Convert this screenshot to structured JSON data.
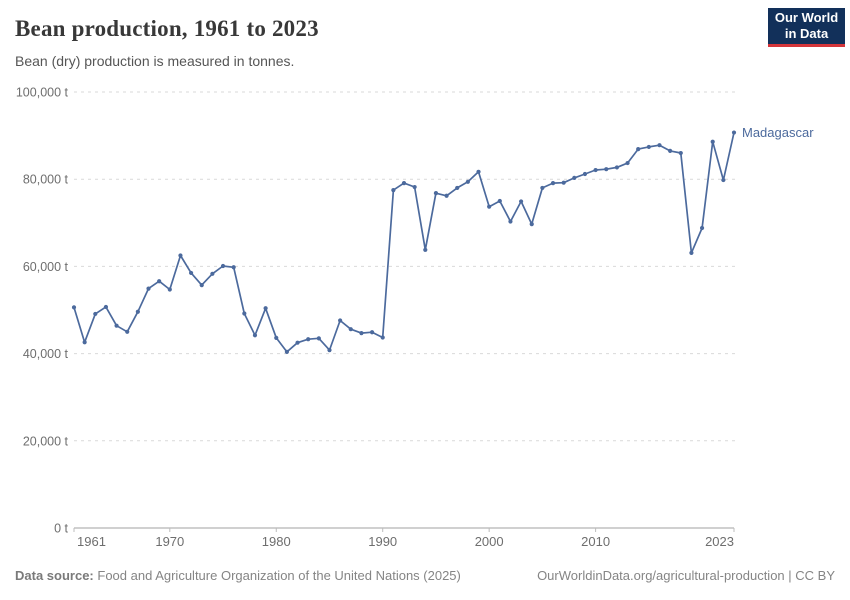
{
  "header": {
    "title": "Bean production, 1961 to 2023",
    "subtitle": "Bean (dry) production is measured in tonnes.",
    "logo_line1": "Our World",
    "logo_line2": "in Data"
  },
  "colors": {
    "series_blue": "#4c6a9d",
    "grid_gray": "#d9d9d9",
    "axis_gray": "#a0a0a0",
    "tick_label_gray": "#6e6e6e",
    "logo_bg_navy": "#12305a",
    "logo_red": "#d4353a"
  },
  "chart_data": {
    "type": "line",
    "title": "Bean production, 1961 to 2023",
    "subtitle": "Bean (dry) production is measured in tonnes.",
    "unit": "t",
    "grid": "horizontal dashed",
    "legend_position": "end-of-line label",
    "x_range": [
      1961,
      2023
    ],
    "ylim": [
      0,
      100000
    ],
    "yticks": [
      0,
      20000,
      40000,
      60000,
      80000,
      100000
    ],
    "ytick_labels": [
      "0 t",
      "20,000 t",
      "40,000 t",
      "60,000 t",
      "80,000 t",
      "100,000 t"
    ],
    "xticks": [
      1961,
      1970,
      1980,
      1990,
      2000,
      2010,
      2023
    ],
    "xtick_labels": [
      "1961",
      "1970",
      "1980",
      "1990",
      "2000",
      "2010",
      "2023"
    ],
    "years": [
      1961,
      1962,
      1963,
      1964,
      1965,
      1966,
      1967,
      1968,
      1969,
      1970,
      1971,
      1972,
      1973,
      1974,
      1975,
      1976,
      1977,
      1978,
      1979,
      1980,
      1981,
      1982,
      1983,
      1984,
      1985,
      1986,
      1987,
      1988,
      1989,
      1990,
      1991,
      1992,
      1993,
      1994,
      1995,
      1996,
      1997,
      1998,
      1999,
      2000,
      2001,
      2002,
      2003,
      2004,
      2005,
      2006,
      2007,
      2008,
      2009,
      2010,
      2011,
      2012,
      2013,
      2014,
      2015,
      2016,
      2017,
      2018,
      2019,
      2020,
      2021,
      2022,
      2023
    ],
    "series": [
      {
        "name": "Madagascar",
        "color": "#4c6a9d",
        "values": [
          50600,
          42600,
          49100,
          50700,
          46400,
          45000,
          49600,
          54900,
          56600,
          54700,
          62500,
          58500,
          55700,
          58300,
          60100,
          59800,
          49200,
          44200,
          50400,
          43600,
          40400,
          42500,
          43300,
          43500,
          40800,
          47600,
          45600,
          44700,
          44900,
          43700,
          77500,
          79100,
          78200,
          63800,
          76800,
          76200,
          78000,
          79400,
          81700,
          73700,
          75000,
          70300,
          74900,
          69700,
          78000,
          79100,
          79200,
          80300,
          81200,
          82100,
          82300,
          82700,
          83700,
          86900,
          87400,
          87800,
          86500,
          86000,
          63100,
          68800,
          88600,
          79800,
          90700
        ]
      }
    ]
  },
  "footer": {
    "source_label": "Data source:",
    "source_text": "Food and Agriculture Organization of the United Nations (2025)",
    "link_text": "OurWorldinData.org/agricultural-production | CC BY"
  }
}
